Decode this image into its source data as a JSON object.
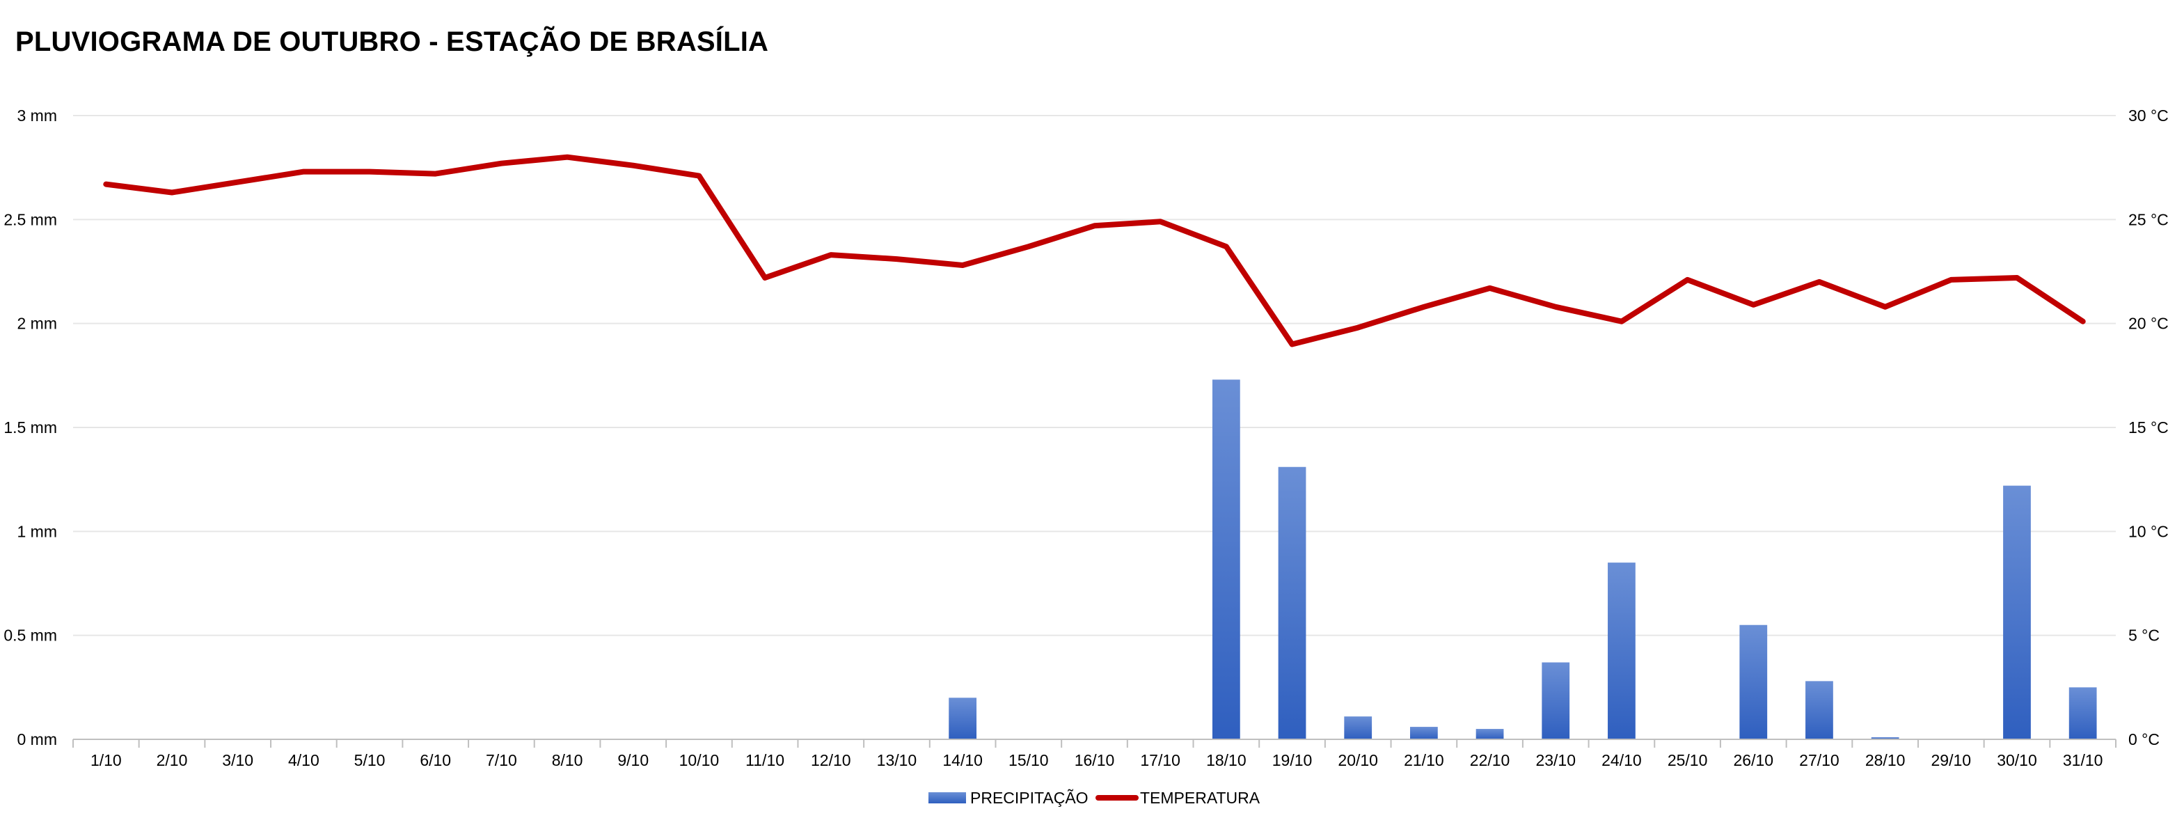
{
  "chart_data": {
    "type": "bar",
    "title": "PLUVIOGRAMA DE OUTUBRO - ESTAÇÃO DE BRASÍLIA",
    "categories": [
      "1/10",
      "2/10",
      "3/10",
      "4/10",
      "5/10",
      "6/10",
      "7/10",
      "8/10",
      "9/10",
      "10/10",
      "11/10",
      "12/10",
      "13/10",
      "14/10",
      "15/10",
      "16/10",
      "17/10",
      "18/10",
      "19/10",
      "20/10",
      "21/10",
      "22/10",
      "23/10",
      "24/10",
      "25/10",
      "26/10",
      "27/10",
      "28/10",
      "29/10",
      "30/10",
      "31/10"
    ],
    "series": [
      {
        "name": "PRECIPITAÇÃO",
        "type": "bar",
        "axis": "left",
        "color": "#4472C4",
        "values": [
          0,
          0,
          0,
          0,
          0,
          0,
          0,
          0,
          0,
          0,
          0,
          0,
          0,
          0.2,
          0,
          0,
          0,
          1.73,
          1.31,
          0.11,
          0.06,
          0.05,
          0.37,
          0.85,
          0,
          0.55,
          0.28,
          0.01,
          0,
          1.22,
          0.25
        ]
      },
      {
        "name": "TEMPERATURA",
        "type": "line",
        "axis": "right",
        "color": "#C00000",
        "values": [
          26.7,
          26.3,
          26.8,
          27.3,
          27.3,
          27.2,
          27.7,
          28.0,
          27.6,
          27.1,
          22.2,
          23.3,
          23.1,
          22.8,
          23.7,
          24.7,
          24.9,
          23.7,
          19.0,
          19.8,
          20.8,
          21.7,
          20.8,
          20.1,
          22.1,
          20.9,
          22.0,
          20.8,
          22.1,
          22.2,
          20.1
        ]
      }
    ],
    "y_left": {
      "min": 0,
      "max": 3,
      "ticks": [
        0,
        0.5,
        1,
        1.5,
        2,
        2.5,
        3
      ],
      "tick_labels": [
        "0 mm",
        "0.5 mm",
        "1 mm",
        "1.5 mm",
        "2 mm",
        "2.5 mm",
        "3 mm"
      ]
    },
    "y_right": {
      "min": 0,
      "max": 30,
      "ticks": [
        0,
        5,
        10,
        15,
        20,
        25,
        30
      ],
      "tick_labels": [
        "0 °C",
        "5 °C",
        "10 °C",
        "15 °C",
        "20 °C",
        "25 °C",
        "30 °C"
      ]
    },
    "grid": true,
    "legend": {
      "position": "bottom",
      "entries": [
        "PRECIPITAÇÃO",
        "TEMPERATURA"
      ]
    }
  }
}
